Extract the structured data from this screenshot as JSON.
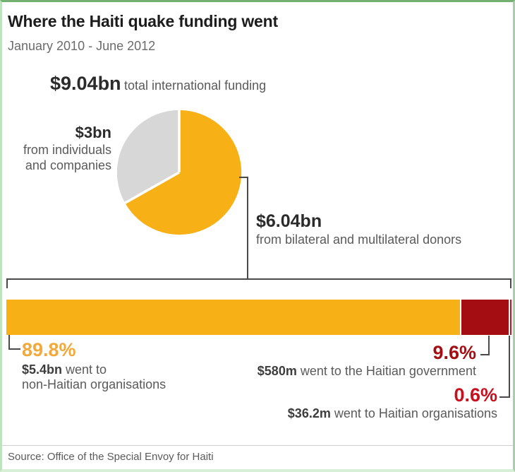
{
  "header": {
    "title": "Where the Haiti quake funding went",
    "subtitle": "January 2010 - June 2012"
  },
  "total": {
    "amount": "$9.04bn",
    "label": "total international funding"
  },
  "pie": {
    "gray_slice": {
      "amount": "$3bn",
      "label_line1": "from individuals",
      "label_line2": "and companies",
      "color": "#d7d7d7",
      "percent": 33.2
    },
    "yellow_slice": {
      "amount": "$6.04bn",
      "label": "from bilateral and multilateral donors",
      "color": "#f8b017",
      "percent": 66.8
    }
  },
  "bar": {
    "seg1": {
      "pct": 89.8,
      "pct_label": "89.8%",
      "color": "#f8b017",
      "label_color": "#f2a93a",
      "amount": "$5.4bn",
      "desc_rest": " went to",
      "desc_line2": "non-Haitian organisations"
    },
    "seg2": {
      "pct": 9.6,
      "pct_label": "9.6%",
      "color": "#a40e13",
      "label_color": "#a40e13",
      "amount": "$580m",
      "desc_rest": " went to the Haitian government"
    },
    "seg3": {
      "pct": 0.6,
      "pct_label": "0.6%",
      "color": "#c8111f",
      "label_color": "#c8111f",
      "amount": "$36.2m",
      "desc_rest": " went to Haitian organisations"
    }
  },
  "footer": {
    "source": "Source: Office of the Special Envoy for Haiti"
  },
  "chart_data": [
    {
      "type": "pie",
      "title": "$9.04bn total international funding",
      "labels": [
        "from bilateral and multilateral donors",
        "from individuals and companies"
      ],
      "value_labels": [
        "$6.04bn",
        "$3bn"
      ],
      "values": [
        6.04,
        3.0
      ],
      "unit": "USD bn",
      "total": 9.04,
      "colors": [
        "#f8b017",
        "#d7d7d7"
      ],
      "start_angle_deg": 0,
      "direction": "clockwise"
    },
    {
      "type": "bar",
      "subtype": "horizontal-stacked",
      "title": "Where the Haiti quake funding went, January 2010 - June 2012",
      "categories": [
        "non-Haitian organisations",
        "Haitian government",
        "Haitian organisations"
      ],
      "values": [
        89.8,
        9.6,
        0.6
      ],
      "amount_labels": [
        "$5.4bn",
        "$580m",
        "$36.2m"
      ],
      "unit": "%",
      "xlim": [
        0,
        100
      ],
      "colors": [
        "#f8b017",
        "#a40e13",
        "#c8111f"
      ],
      "legend": "none",
      "grid": false
    }
  ]
}
